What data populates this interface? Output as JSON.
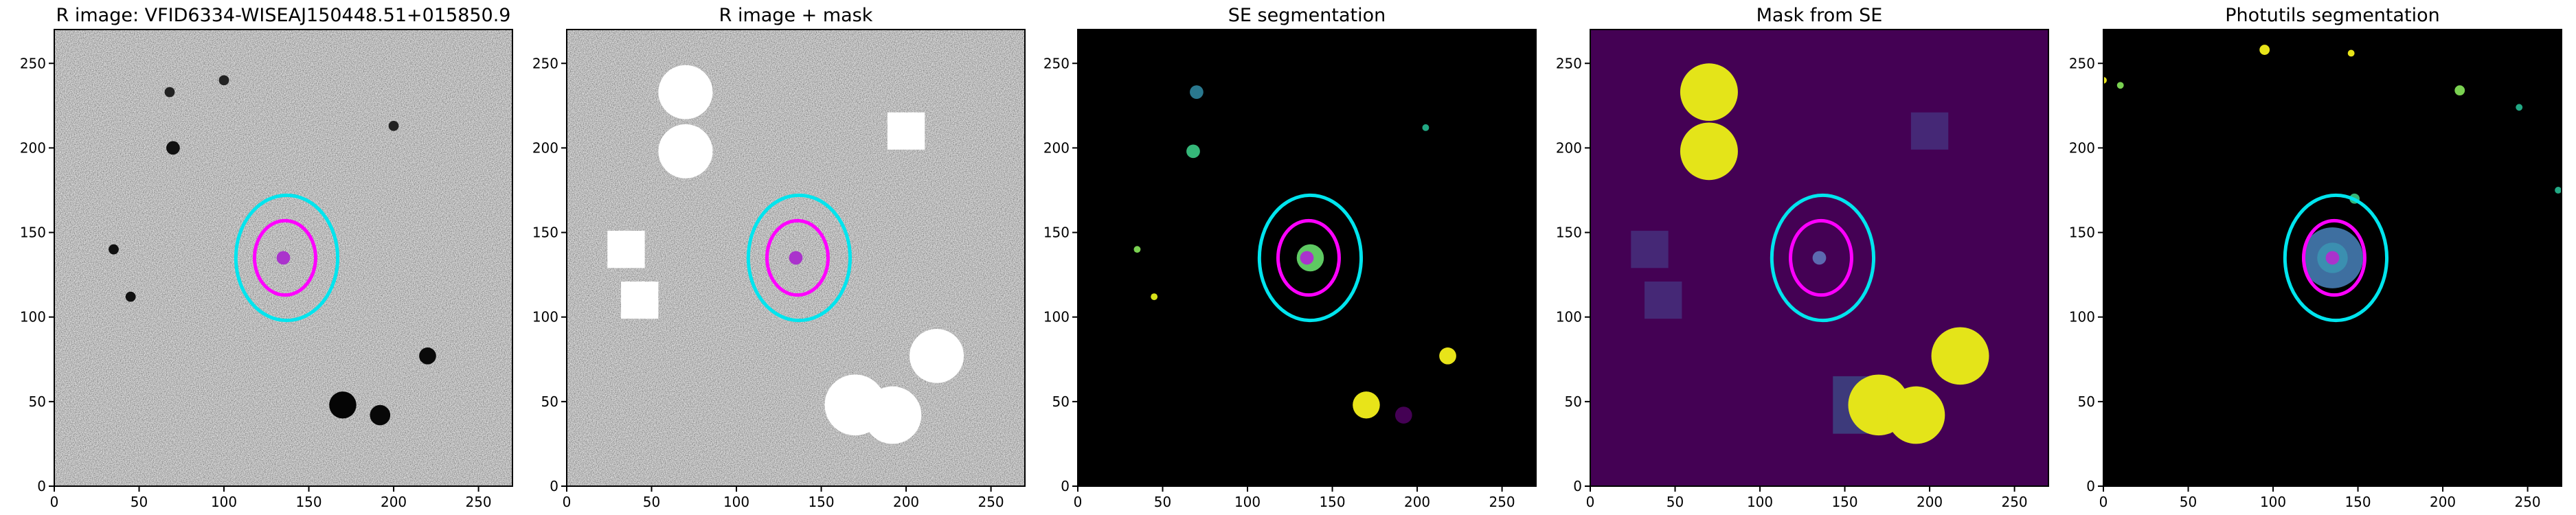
{
  "chart_data": [
    {
      "type": "image",
      "title": "R image: VFID6334-WISEAJ150448.51+015850.9",
      "xlim": [
        0,
        270
      ],
      "ylim": [
        0,
        270
      ],
      "xticks": [
        0,
        50,
        100,
        150,
        200,
        250
      ],
      "yticks": [
        0,
        50,
        100,
        150,
        200,
        250
      ]
    },
    {
      "type": "image",
      "title": "R image + mask",
      "xlim": [
        0,
        270
      ],
      "ylim": [
        0,
        270
      ],
      "xticks": [
        0,
        50,
        100,
        150,
        200,
        250
      ],
      "yticks": [
        0,
        50,
        100,
        150,
        200,
        250
      ]
    },
    {
      "type": "image",
      "title": "SE segmentation",
      "xlim": [
        0,
        270
      ],
      "ylim": [
        0,
        270
      ],
      "xticks": [
        0,
        50,
        100,
        150,
        200,
        250
      ],
      "yticks": [
        0,
        50,
        100,
        150,
        200,
        250
      ]
    },
    {
      "type": "image",
      "title": "Mask from SE",
      "xlim": [
        0,
        270
      ],
      "ylim": [
        0,
        270
      ],
      "xticks": [
        0,
        50,
        100,
        150,
        200,
        250
      ],
      "yticks": [
        0,
        50,
        100,
        150,
        200,
        250
      ]
    },
    {
      "type": "image",
      "title": "Photutils segmentation",
      "xlim": [
        0,
        270
      ],
      "ylim": [
        0,
        270
      ],
      "xticks": [
        0,
        50,
        100,
        150,
        200,
        250
      ],
      "yticks": [
        0,
        50,
        100,
        150,
        200,
        250
      ]
    }
  ]
}
